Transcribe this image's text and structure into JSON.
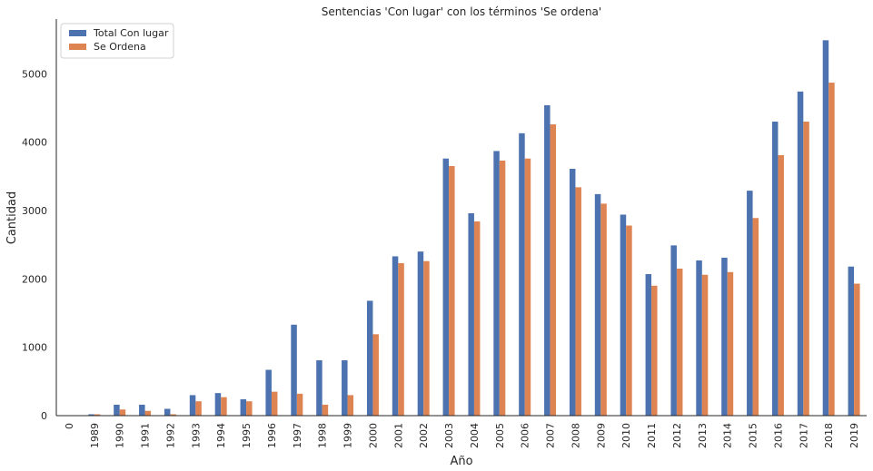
{
  "chart_data": {
    "type": "bar",
    "title": "Sentencias 'Con lugar' con los términos 'Se ordena'",
    "xlabel": "Año",
    "ylabel": "Cantidad",
    "ylim": [
      0,
      5800
    ],
    "yticks": [
      0,
      1000,
      2000,
      3000,
      4000,
      5000
    ],
    "legend_position": "top-left",
    "grid": false,
    "categories": [
      "0",
      "1989",
      "1990",
      "1991",
      "1992",
      "1993",
      "1994",
      "1995",
      "1996",
      "1997",
      "1998",
      "1999",
      "2000",
      "2001",
      "2002",
      "2003",
      "2004",
      "2005",
      "2006",
      "2007",
      "2008",
      "2009",
      "2010",
      "2011",
      "2012",
      "2013",
      "2014",
      "2015",
      "2016",
      "2017",
      "2018",
      "2019"
    ],
    "series": [
      {
        "name": "Total Con lugar",
        "color": "#4c72b0",
        "values": [
          0,
          20,
          160,
          160,
          100,
          300,
          330,
          240,
          670,
          1330,
          810,
          810,
          1680,
          2330,
          2400,
          3760,
          2960,
          3870,
          4130,
          4540,
          3610,
          3240,
          2940,
          2070,
          2490,
          2270,
          2310,
          3290,
          4300,
          4740,
          5490,
          2180
        ]
      },
      {
        "name": "Se Ordena",
        "color": "#dd8452",
        "values": [
          0,
          20,
          90,
          70,
          20,
          210,
          270,
          210,
          350,
          320,
          160,
          300,
          1190,
          2230,
          2260,
          3650,
          2840,
          3730,
          3760,
          4260,
          3340,
          3100,
          2780,
          1900,
          2150,
          2060,
          2100,
          2890,
          3810,
          4300,
          4870,
          1930
        ]
      }
    ]
  }
}
